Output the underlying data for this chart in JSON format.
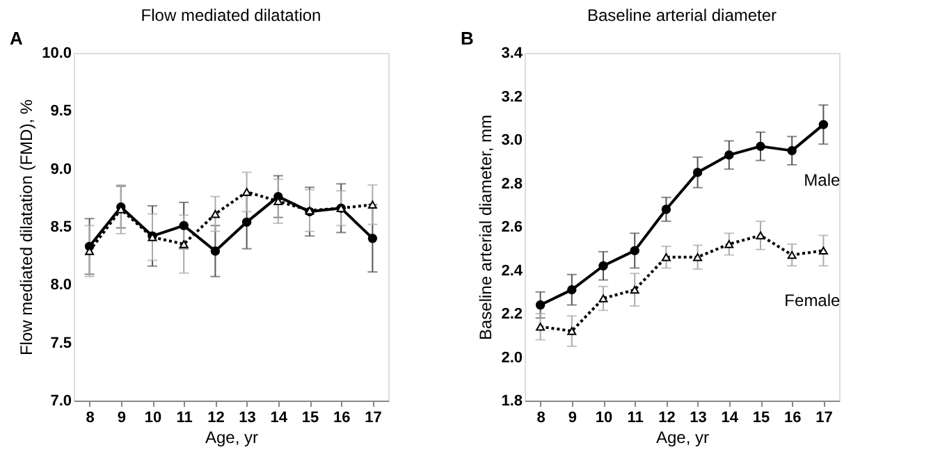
{
  "chart_data": [
    {
      "type": "line",
      "title": "Flow mediated dilatation",
      "xlabel": "Age, yr",
      "ylabel": "Flow mediated dilatation (FMD), %",
      "annotations": [
        "A"
      ],
      "categories": [
        "8",
        "9",
        "10",
        "11",
        "12",
        "13",
        "14",
        "15",
        "16",
        "17"
      ],
      "series": [
        {
          "color": "#000000",
          "marker": "circle",
          "line_style": "solid",
          "values": [
            8.33,
            8.67,
            8.42,
            8.51,
            8.29,
            8.54,
            8.76,
            8.63,
            8.66,
            8.4
          ],
          "errors": [
            0.24,
            0.18,
            0.26,
            0.2,
            0.22,
            0.23,
            0.18,
            0.21,
            0.21,
            0.29
          ]
        },
        {
          "color": "#000000",
          "marker": "triangle",
          "line_style": "dotted",
          "values": [
            8.29,
            8.65,
            8.41,
            8.35,
            8.61,
            8.8,
            8.72,
            8.64,
            8.66,
            8.69
          ],
          "errors": [
            0.22,
            0.21,
            0.2,
            0.25,
            0.15,
            0.17,
            0.19,
            0.18,
            0.15,
            0.17
          ]
        }
      ],
      "ylim": [
        7.0,
        10.0
      ],
      "yticks": [
        {
          "value": 7.0,
          "label": "7.0"
        },
        {
          "value": 7.5,
          "label": "7.5"
        },
        {
          "value": 8.0,
          "label": "8.0"
        },
        {
          "value": 8.5,
          "label": "8.5"
        },
        {
          "value": 9.0,
          "label": "9.0"
        },
        {
          "value": 9.5,
          "label": "9.5"
        },
        {
          "value": 10.0,
          "label": "10.0"
        }
      ],
      "grid": false
    },
    {
      "type": "line",
      "title": "Baseline arterial diameter",
      "xlabel": "Age, yr",
      "ylabel": "Baseline arterial diameter, mm",
      "annotations": [
        "B"
      ],
      "categories": [
        "8",
        "9",
        "10",
        "11",
        "12",
        "13",
        "14",
        "15",
        "16",
        "17"
      ],
      "series": [
        {
          "name": "Male",
          "color": "#000000",
          "marker": "circle",
          "line_style": "solid",
          "values": [
            2.24,
            2.31,
            2.42,
            2.49,
            2.68,
            2.85,
            2.93,
            2.97,
            2.95,
            3.07
          ],
          "errors": [
            0.06,
            0.07,
            0.065,
            0.08,
            0.055,
            0.07,
            0.065,
            0.065,
            0.065,
            0.09
          ]
        },
        {
          "name": "Female",
          "color": "#000000",
          "marker": "triangle",
          "line_style": "dotted",
          "values": [
            2.14,
            2.12,
            2.27,
            2.31,
            2.46,
            2.46,
            2.52,
            2.56,
            2.47,
            2.49
          ],
          "errors": [
            0.06,
            0.07,
            0.055,
            0.075,
            0.05,
            0.055,
            0.05,
            0.065,
            0.05,
            0.07
          ]
        }
      ],
      "ylim": [
        1.8,
        3.4
      ],
      "yticks": [
        {
          "value": 1.8,
          "label": "1.8"
        },
        {
          "value": 2.0,
          "label": "2.0"
        },
        {
          "value": 2.2,
          "label": "2.2"
        },
        {
          "value": 2.4,
          "label": "2.4"
        },
        {
          "value": 2.6,
          "label": "2.6"
        },
        {
          "value": 2.8,
          "label": "2.8"
        },
        {
          "value": 3.0,
          "label": "3.0"
        },
        {
          "value": 3.2,
          "label": "3.2"
        },
        {
          "value": 3.4,
          "label": "3.4"
        }
      ],
      "grid": false
    }
  ]
}
